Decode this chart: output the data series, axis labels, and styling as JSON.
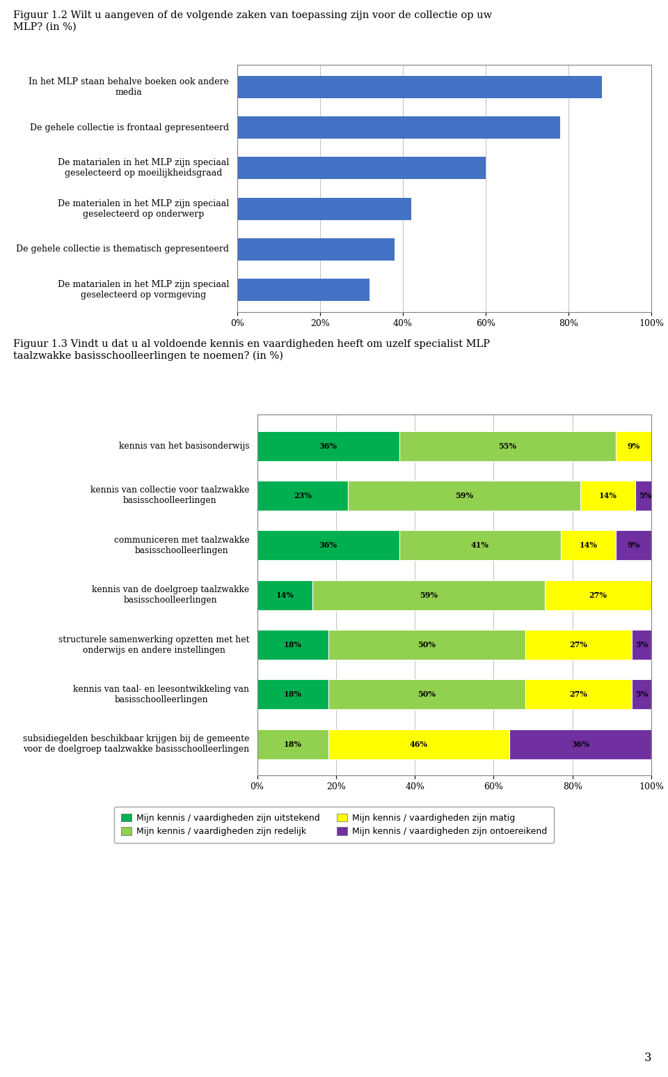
{
  "fig1_title": "Figuur 1.2 Wilt u aangeven of de volgende zaken van toepassing zijn voor de collectie op uw\nMLP? (in %)",
  "fig1_categories": [
    "In het MLP staan behalve boeken ook andere\nmedia",
    "De gehele collectie is frontaal gepresenteerd",
    "De matarialen in het MLP zijn speciaal\ngeselecteerd op moeilijkheidsgraad",
    "De materialen in het MLP zijn speciaal\ngeselecteerd op onderwerp",
    "De gehele collectie is thematisch gepresenteerd",
    "De matarialen in het MLP zijn speciaal\ngeselecteerd op vormgeving"
  ],
  "fig1_values": [
    88,
    78,
    60,
    42,
    38,
    32
  ],
  "fig1_bar_color": "#4472C4",
  "fig1_xlim": [
    0,
    100
  ],
  "fig1_xticks": [
    0,
    20,
    40,
    60,
    80,
    100
  ],
  "fig1_xticklabels": [
    "0%",
    "20%",
    "40%",
    "60%",
    "80%",
    "100%"
  ],
  "fig2_title": "Figuur 1.3 Vindt u dat u al voldoende kennis en vaardigheden heeft om uzelf specialist MLP\ntaalzwakke basisschoolleerlingen te noemen? (in %)",
  "fig2_categories": [
    "kennis van het basisonderwijs",
    "kennis van collectie voor taalzwakke\nbasisschoolleerlingen",
    "communiceren met taalzwakke\nbasisschoolleerlingen",
    "kennis van de doelgroep taalzwakke\nbasisschoolleerlingen",
    "structurele samenwerking opzetten met het\nonderwijs en andere instellingen",
    "kennis van taal- en leesontwikkeling van\nbasisschoolleerlingen",
    "subsidiegelden beschikbaar krijgen bij de gemeente\nvoor de doelgroep taalzwakke basisschoolleerlingen"
  ],
  "fig2_data": [
    [
      36,
      55,
      9,
      0
    ],
    [
      23,
      59,
      14,
      5
    ],
    [
      36,
      41,
      14,
      9
    ],
    [
      14,
      59,
      27,
      0
    ],
    [
      18,
      50,
      27,
      5
    ],
    [
      18,
      50,
      27,
      5
    ],
    [
      0,
      18,
      46,
      36
    ]
  ],
  "fig2_colors": [
    "#00B050",
    "#92D050",
    "#FFFF00",
    "#7030A0"
  ],
  "fig2_legend_labels": [
    "Mijn kennis / vaardigheden zijn uitstekend",
    "Mijn kennis / vaardigheden zijn redelijk",
    "Mijn kennis / vaardigheden zijn matig",
    "Mijn kennis / vaardigheden zijn ontoereikend"
  ],
  "fig2_xlim": [
    0,
    100
  ],
  "fig2_xticks": [
    0,
    20,
    40,
    60,
    80,
    100
  ],
  "fig2_xticklabels": [
    "0%",
    "20%",
    "40%",
    "60%",
    "80%",
    "100%"
  ],
  "background_color": "#FFFFFF",
  "page_number": "3",
  "grid_color": "#C0C0C0",
  "box_color": "#808080"
}
